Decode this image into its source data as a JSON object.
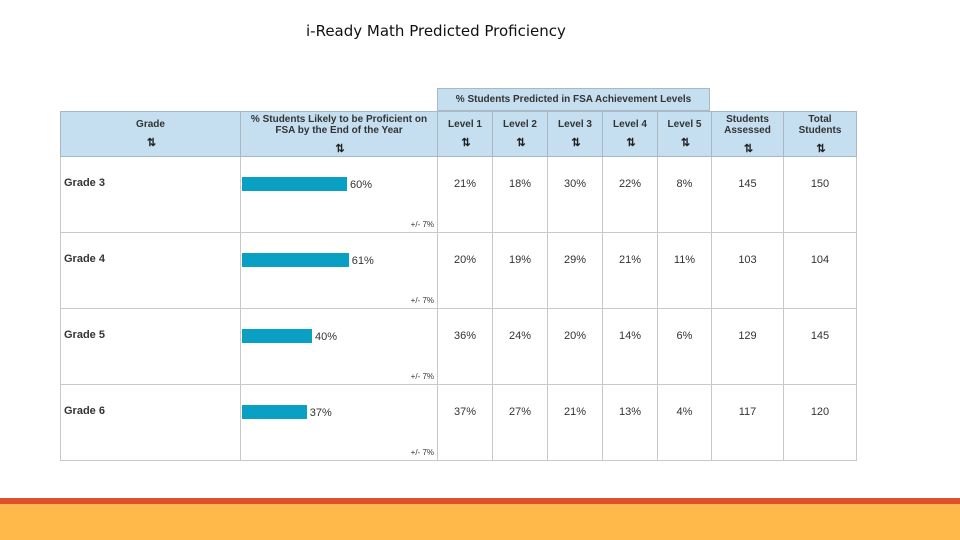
{
  "title": "i-Ready Math Predicted Proficiency",
  "group_header": "% Students Predicted in FSA Achievement Levels",
  "sort_glyph": "⇅",
  "headers": {
    "grade": "Grade",
    "likely": "% Students Likely to be Proficient on FSA by the End of the Year",
    "level1": "Level 1",
    "level2": "Level 2",
    "level3": "Level 3",
    "level4": "Level 4",
    "level5": "Level 5",
    "assessed": "Students Assessed",
    "total": "Total Students"
  },
  "colors": {
    "bar": "#0aa0c4",
    "header_bg": "#c5dff0",
    "footer_red": "#e0502c",
    "footer_yellow": "#ffb94b"
  },
  "rows": [
    {
      "grade": "Grade 3",
      "likely": "60%",
      "likely_value": 60,
      "margin": "+/- 7%",
      "level1": "21%",
      "level2": "18%",
      "level3": "30%",
      "level4": "22%",
      "level5": "8%",
      "assessed": "145",
      "total": "150"
    },
    {
      "grade": "Grade 4",
      "likely": "61%",
      "likely_value": 61,
      "margin": "+/- 7%",
      "level1": "20%",
      "level2": "19%",
      "level3": "29%",
      "level4": "21%",
      "level5": "11%",
      "assessed": "103",
      "total": "104"
    },
    {
      "grade": "Grade 5",
      "likely": "40%",
      "likely_value": 40,
      "margin": "+/- 7%",
      "level1": "36%",
      "level2": "24%",
      "level3": "20%",
      "level4": "14%",
      "level5": "6%",
      "assessed": "129",
      "total": "145"
    },
    {
      "grade": "Grade 6",
      "likely": "37%",
      "likely_value": 37,
      "margin": "+/- 7%",
      "level1": "37%",
      "level2": "27%",
      "level3": "21%",
      "level4": "13%",
      "level5": "4%",
      "assessed": "117",
      "total": "120"
    }
  ]
}
